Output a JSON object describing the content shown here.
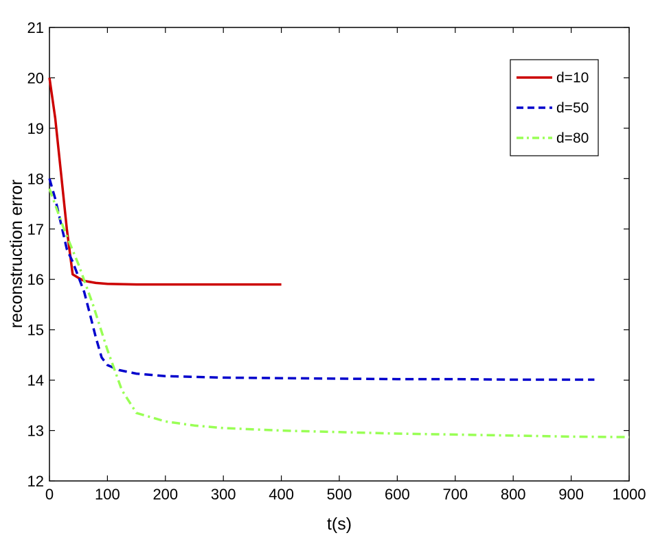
{
  "chart_data": {
    "type": "line",
    "title": "",
    "xlabel": "t(s)",
    "ylabel": "reconstruction error",
    "xlim": [
      0,
      1000
    ],
    "ylim": [
      12,
      21
    ],
    "xticks": [
      0,
      100,
      200,
      300,
      400,
      500,
      600,
      700,
      800,
      900,
      1000
    ],
    "yticks": [
      12,
      13,
      14,
      15,
      16,
      17,
      18,
      19,
      20,
      21
    ],
    "grid": false,
    "legend_position": "top-right",
    "series": [
      {
        "name": "d=10",
        "color": "#cc0000",
        "style": "solid",
        "x": [
          0,
          10,
          20,
          30,
          40,
          50,
          60,
          80,
          100,
          150,
          200,
          250,
          300,
          350,
          400
        ],
        "y": [
          20.0,
          19.2,
          18.1,
          17.0,
          16.1,
          16.03,
          15.97,
          15.93,
          15.91,
          15.9,
          15.9,
          15.9,
          15.9,
          15.9,
          15.9
        ]
      },
      {
        "name": "d=50",
        "color": "#0000cc",
        "style": "dashed",
        "x": [
          0,
          10,
          20,
          30,
          40,
          50,
          60,
          70,
          80,
          90,
          100,
          120,
          150,
          200,
          300,
          400,
          500,
          600,
          700,
          800,
          900,
          940
        ],
        "y": [
          18.0,
          17.6,
          17.1,
          16.6,
          16.35,
          16.05,
          15.75,
          15.3,
          14.85,
          14.45,
          14.3,
          14.2,
          14.13,
          14.08,
          14.05,
          14.04,
          14.03,
          14.02,
          14.02,
          14.01,
          14.01,
          14.01
        ]
      },
      {
        "name": "d=80",
        "color": "#99ff55",
        "style": "dashdot",
        "x": [
          0,
          25,
          50,
          75,
          100,
          125,
          150,
          200,
          250,
          300,
          400,
          500,
          600,
          700,
          800,
          900,
          1000
        ],
        "y": [
          17.8,
          17.0,
          16.3,
          15.5,
          14.6,
          13.8,
          13.35,
          13.18,
          13.1,
          13.05,
          13.0,
          12.97,
          12.94,
          12.92,
          12.9,
          12.88,
          12.87
        ]
      }
    ]
  }
}
